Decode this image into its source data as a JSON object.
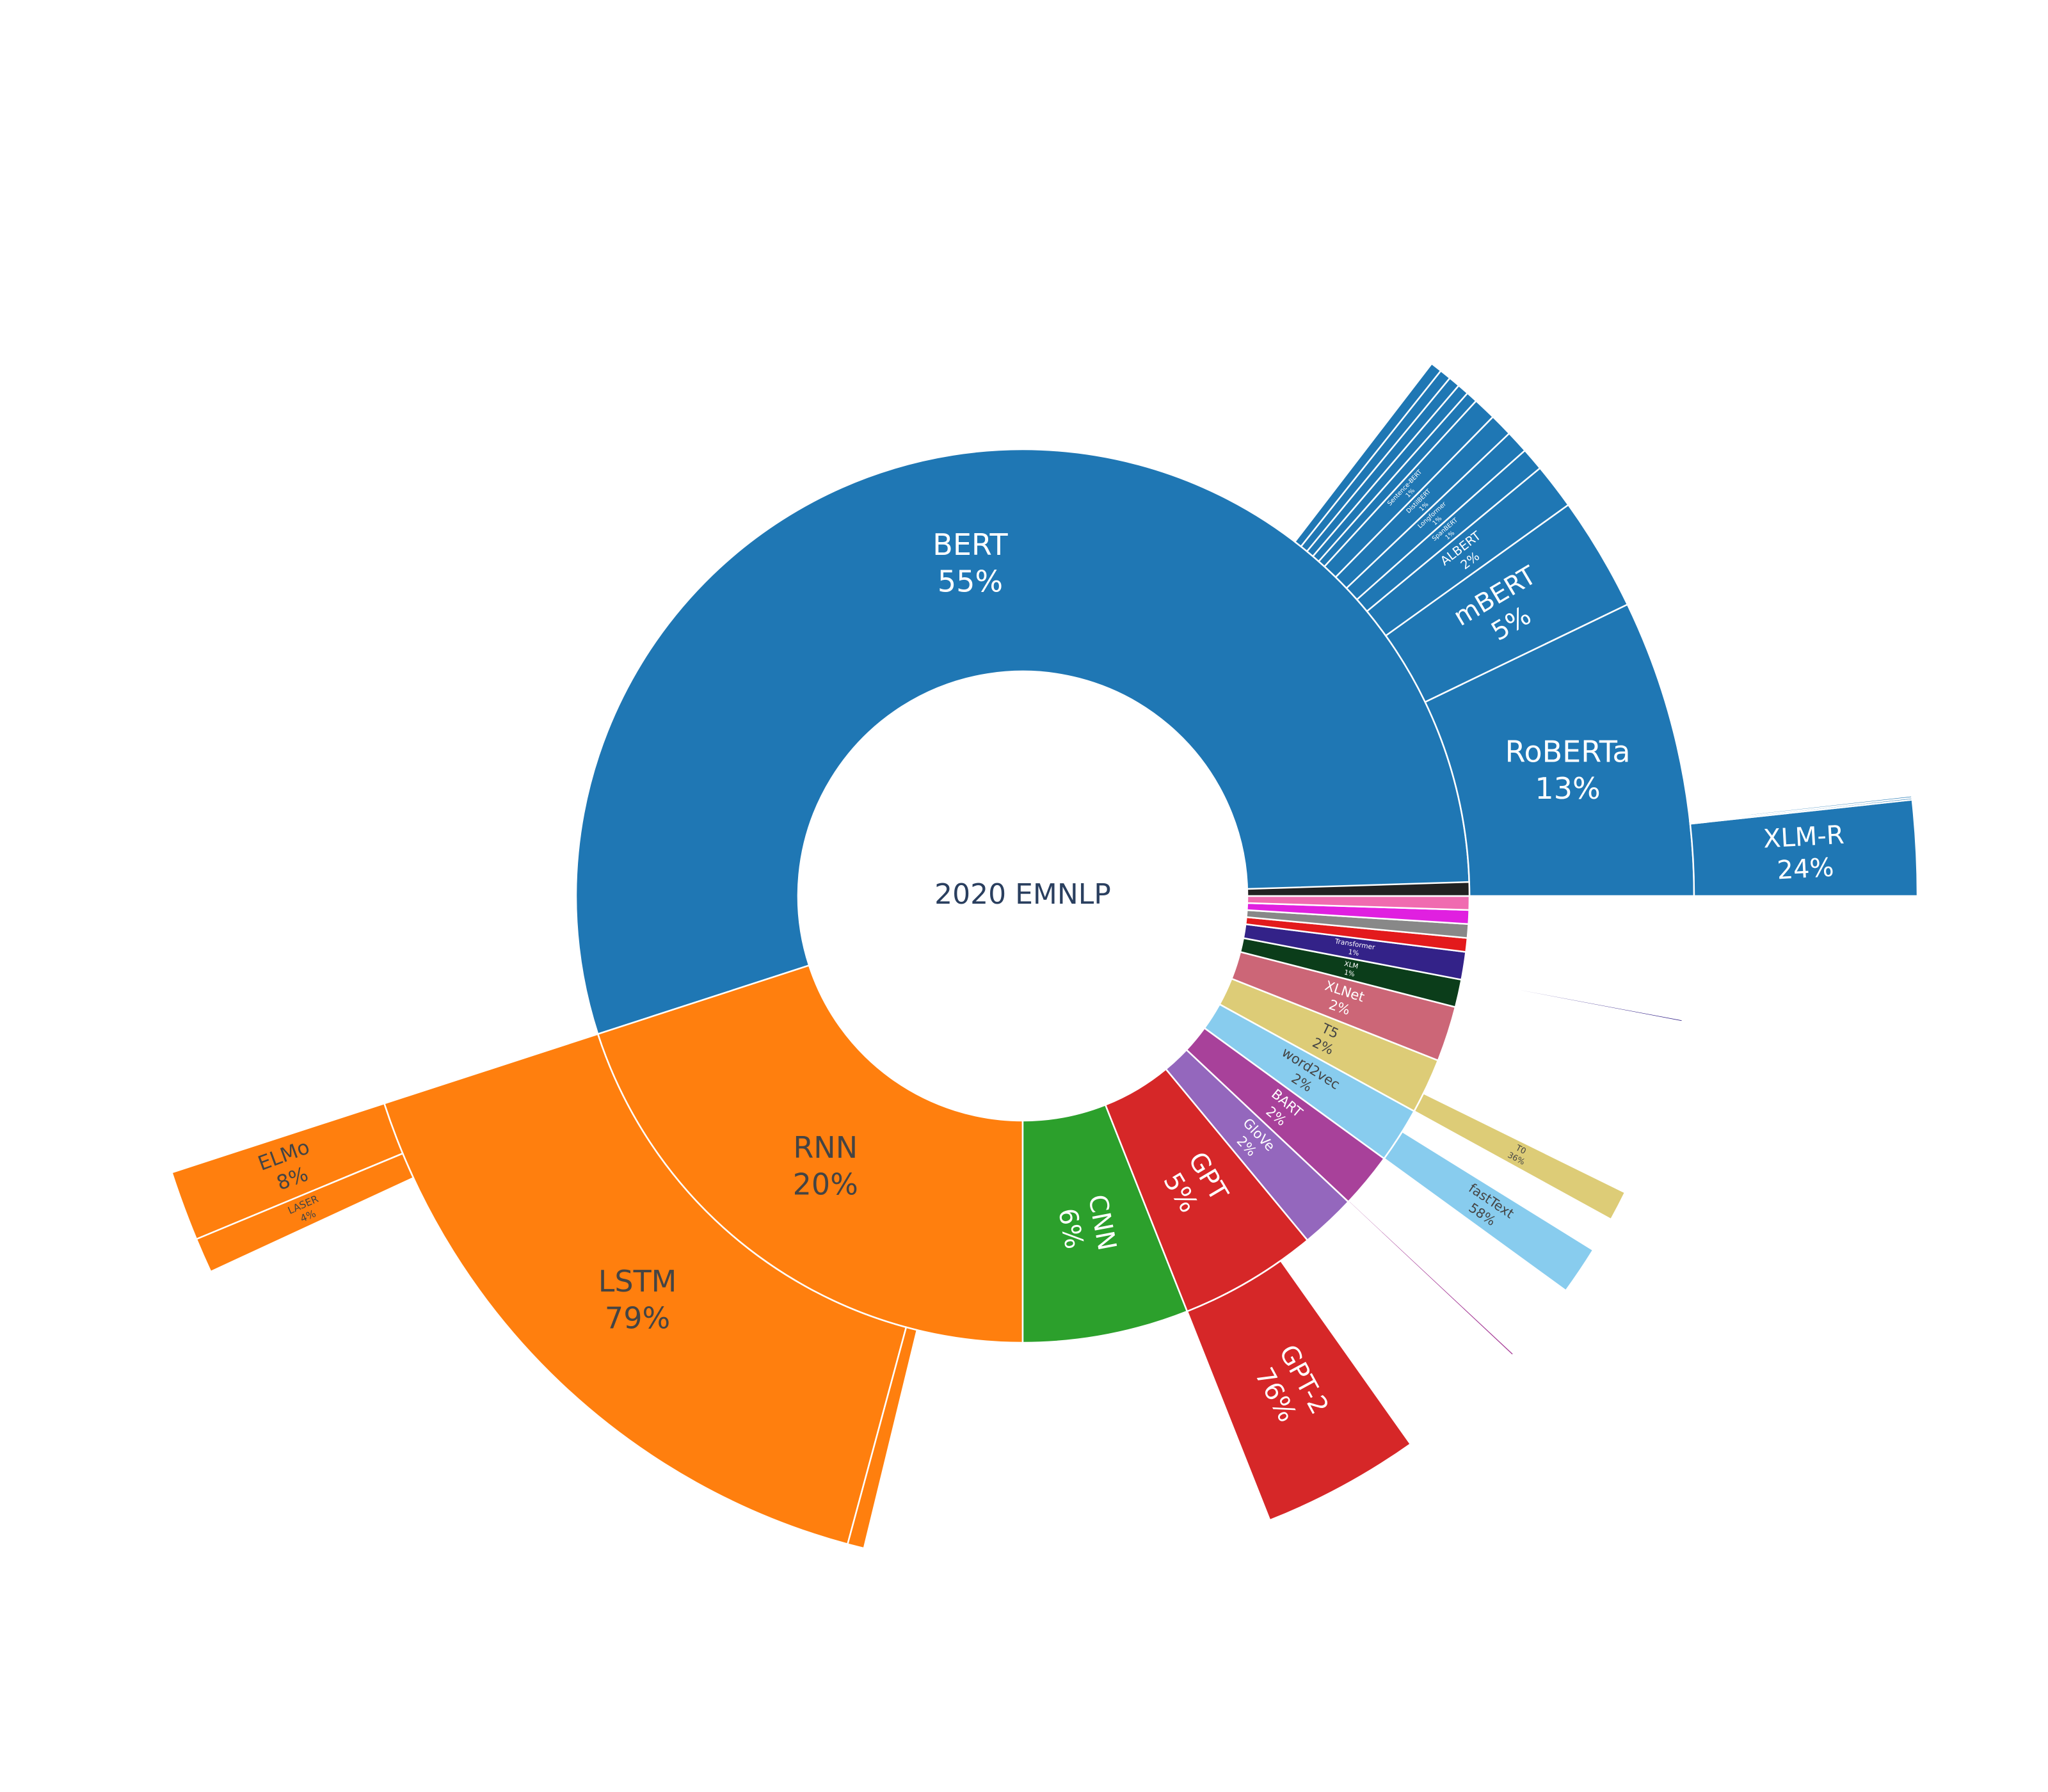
{
  "chart_data": {
    "type": "sunburst",
    "title": "2020 EMNLP",
    "nodes": [
      {
        "name": "BERT",
        "value": 55,
        "value_label": "55%",
        "color": "#1f77b4",
        "children": [
          {
            "name": "RoBERTa",
            "value": 13,
            "value_label": "13%",
            "color": "#1f77b4",
            "children": [
              {
                "name": "XLM-R",
                "value": 24,
                "value_label": "24%",
                "color": "#1f77b4"
              },
              {
                "name": null,
                "value": 0.5,
                "color": "#1f77b4"
              },
              {
                "name": null,
                "value": 0.5,
                "color": "#1f77b4"
              }
            ]
          },
          {
            "name": "mBERT",
            "value": 5,
            "value_label": "5%",
            "color": "#1f77b4"
          },
          {
            "name": "ALBERT",
            "value": 2,
            "value_label": "2%",
            "color": "#1f77b4"
          },
          {
            "name": "SpanBERT",
            "value": 1,
            "value_label": "1%",
            "color": "#1f77b4"
          },
          {
            "name": "Longformer",
            "value": 1,
            "value_label": "1%",
            "color": "#1f77b4"
          },
          {
            "name": "DistilBERT",
            "value": 1,
            "value_label": "1%",
            "color": "#1f77b4"
          },
          {
            "name": "Sentence-BERT",
            "value": 1,
            "value_label": "1%",
            "color": "#1f77b4"
          },
          {
            "name": null,
            "value": 0.5,
            "color": "#1f77b4"
          },
          {
            "name": null,
            "value": 0.5,
            "color": "#1f77b4"
          },
          {
            "name": null,
            "value": 0.5,
            "color": "#1f77b4"
          },
          {
            "name": null,
            "value": 0.5,
            "color": "#1f77b4"
          },
          {
            "name": null,
            "value": 0.5,
            "color": "#1f77b4"
          }
        ]
      },
      {
        "name": "RNN",
        "value": 20,
        "value_label": "20%",
        "color": "#ff7f0e",
        "children": [
          {
            "name": "LSTM",
            "value": 79,
            "value_label": "79%",
            "color": "#ff7f0e",
            "children": [
              {
                "name": "ELMo",
                "value": 8,
                "value_label": "8%",
                "color": "#ff7f0e"
              },
              {
                "name": "LASER",
                "value": 4,
                "value_label": "4%",
                "color": "#ff7f0e"
              }
            ]
          },
          {
            "name": null,
            "value": 2,
            "color": "#ff7f0e"
          }
        ]
      },
      {
        "name": "CNN",
        "value": 6,
        "value_label": "6%",
        "color": "#2ca02c"
      },
      {
        "name": "GPT",
        "value": 5,
        "value_label": "5%",
        "color": "#d62728",
        "children": [
          {
            "name": "GPT-2",
            "value": 76,
            "value_label": "76%",
            "color": "#d62728"
          }
        ]
      },
      {
        "name": "GloVe",
        "value": 2,
        "value_label": "2%",
        "color": "#9467bd"
      },
      {
        "name": "BART",
        "value": 2,
        "value_label": "2%",
        "color": "#a8419a",
        "children": [
          {
            "name": null,
            "value": 3,
            "color": "#a8419a"
          }
        ]
      },
      {
        "name": "word2vec",
        "value": 2,
        "value_label": "2%",
        "color": "#88ccee",
        "children": [
          {
            "name": "fastText",
            "value": 58,
            "value_label": "58%",
            "color": "#88ccee"
          }
        ]
      },
      {
        "name": "T5",
        "value": 2,
        "value_label": "2%",
        "color": "#ddcc77",
        "children": [
          {
            "name": "T0",
            "value": 36,
            "value_label": "36%",
            "color": "#ddcc77"
          }
        ]
      },
      {
        "name": "XLNet",
        "value": 2,
        "value_label": "2%",
        "color": "#cc6677"
      },
      {
        "name": "XLM",
        "value": 1,
        "value_label": "1%",
        "color": "#0b3d1a"
      },
      {
        "name": "Transformer",
        "value": 1,
        "value_label": "1%",
        "color": "#332288",
        "children": [
          {
            "name": null,
            "value": 5,
            "color": "#332288"
          }
        ]
      },
      {
        "name": null,
        "value": 0.5,
        "color": "#e31a1c"
      },
      {
        "name": null,
        "value": 0.5,
        "color": "#888888"
      },
      {
        "name": null,
        "value": 0.5,
        "color": "#e020e0"
      },
      {
        "name": null,
        "value": 0.5,
        "color": "#f06bb0"
      },
      {
        "name": null,
        "value": 0.5,
        "color": "#222222"
      }
    ]
  }
}
